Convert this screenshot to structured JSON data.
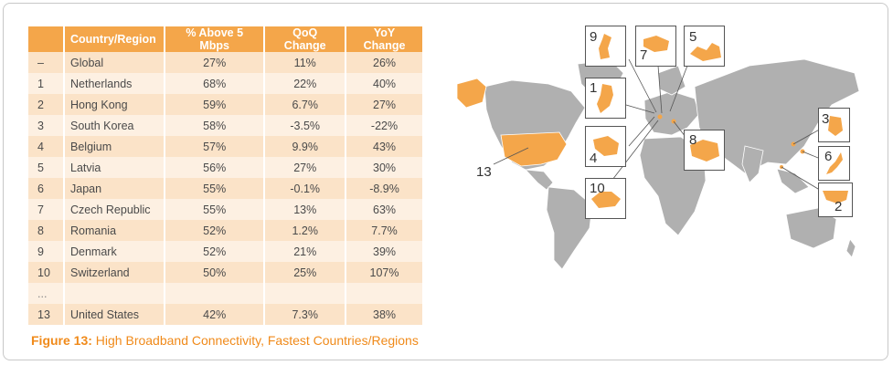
{
  "table": {
    "headers": [
      "",
      "Country/Region",
      "% Above 5 Mbps",
      "QoQ Change",
      "YoY Change"
    ],
    "rows": [
      {
        "rank": "–",
        "country": "Global",
        "pct": "27%",
        "qoq": "11%",
        "yoy": "26%"
      },
      {
        "rank": "1",
        "country": "Netherlands",
        "pct": "68%",
        "qoq": "22%",
        "yoy": "40%"
      },
      {
        "rank": "2",
        "country": "Hong Kong",
        "pct": "59%",
        "qoq": "6.7%",
        "yoy": "27%"
      },
      {
        "rank": "3",
        "country": "South Korea",
        "pct": "58%",
        "qoq": "-3.5%",
        "yoy": "-22%"
      },
      {
        "rank": "4",
        "country": "Belgium",
        "pct": "57%",
        "qoq": "9.9%",
        "yoy": "43%"
      },
      {
        "rank": "5",
        "country": "Latvia",
        "pct": "56%",
        "qoq": "27%",
        "yoy": "30%"
      },
      {
        "rank": "6",
        "country": "Japan",
        "pct": "55%",
        "qoq": "-0.1%",
        "yoy": "-8.9%"
      },
      {
        "rank": "7",
        "country": "Czech Republic",
        "pct": "55%",
        "qoq": "13%",
        "yoy": "63%"
      },
      {
        "rank": "8",
        "country": "Romania",
        "pct": "52%",
        "qoq": "1.2%",
        "yoy": "7.7%"
      },
      {
        "rank": "9",
        "country": "Denmark",
        "pct": "52%",
        "qoq": "21%",
        "yoy": "39%"
      },
      {
        "rank": "10",
        "country": "Switzerland",
        "pct": "50%",
        "qoq": "25%",
        "yoy": "107%"
      },
      {
        "rank": "...",
        "country": "",
        "pct": "",
        "qoq": "",
        "yoy": ""
      },
      {
        "rank": "13",
        "country": "United States",
        "pct": "42%",
        "qoq": "7.3%",
        "yoy": "38%"
      }
    ]
  },
  "caption": {
    "label": "Figure 13:",
    "text": " High Broadband Connectivity, Fastest Countries/Regions"
  },
  "map": {
    "callouts": [
      "9",
      "7",
      "5",
      "1",
      "3",
      "4",
      "8",
      "6",
      "10",
      "2",
      "13"
    ]
  },
  "colors": {
    "accent": "#f4a64a",
    "highlight": "#f08a1a",
    "land": "#b0b0b0"
  }
}
